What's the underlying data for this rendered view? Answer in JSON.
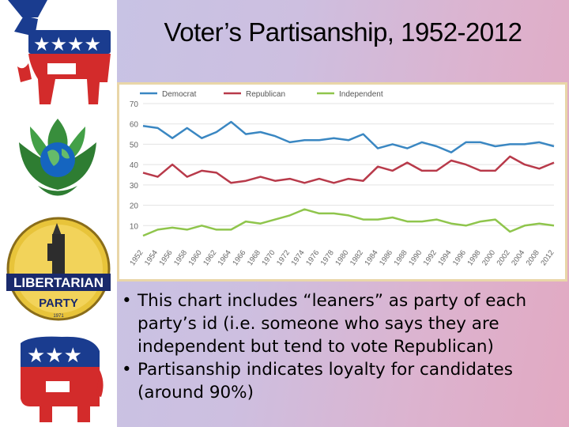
{
  "slide": {
    "title": "Voter’s Partisanship, 1952-2012",
    "bullets": [
      "This chart includes “leaners” as party of each party’s id (i.e. someone who says they are independent but tend to vote Republican)",
      "Partisanship indicates loyalty for candidates (around 90%)"
    ]
  },
  "logos": [
    {
      "icon": "democratic-donkey-icon"
    },
    {
      "icon": "green-party-icon"
    },
    {
      "icon": "libertarian-party-icon",
      "text": "LIBERTARIAN",
      "text2": "PARTY",
      "year": "1971"
    },
    {
      "icon": "republican-elephant-icon"
    }
  ],
  "chart_data": {
    "type": "line",
    "title": "",
    "xlabel": "",
    "ylabel": "",
    "x": [
      1952,
      1954,
      1956,
      1958,
      1960,
      1962,
      1964,
      1966,
      1968,
      1970,
      1972,
      1974,
      1976,
      1978,
      1980,
      1982,
      1984,
      1986,
      1988,
      1990,
      1992,
      1994,
      1996,
      1998,
      2000,
      2002,
      2004,
      2008,
      2012
    ],
    "ylim": [
      0,
      70
    ],
    "yticks": [
      10,
      20,
      30,
      40,
      50,
      60,
      70
    ],
    "grid": true,
    "legend": "top-left",
    "series": [
      {
        "name": "Democrat",
        "color": "#3a87c2",
        "values": [
          59,
          58,
          53,
          58,
          53,
          56,
          61,
          55,
          56,
          54,
          51,
          52,
          52,
          53,
          52,
          55,
          48,
          50,
          48,
          51,
          49,
          46,
          51,
          51,
          49,
          50,
          50,
          51,
          49
        ]
      },
      {
        "name": "Republican",
        "color": "#b83a4a",
        "values": [
          36,
          34,
          40,
          34,
          37,
          36,
          31,
          32,
          34,
          32,
          33,
          31,
          33,
          31,
          33,
          32,
          39,
          37,
          41,
          37,
          37,
          42,
          40,
          37,
          37,
          44,
          40,
          38,
          41
        ]
      },
      {
        "name": "Independent",
        "color": "#8fc54c",
        "values": [
          5,
          8,
          9,
          8,
          10,
          8,
          8,
          12,
          11,
          13,
          15,
          18,
          16,
          16,
          15,
          13,
          13,
          14,
          12,
          12,
          13,
          11,
          10,
          12,
          13,
          7,
          10,
          11,
          10
        ]
      }
    ]
  }
}
